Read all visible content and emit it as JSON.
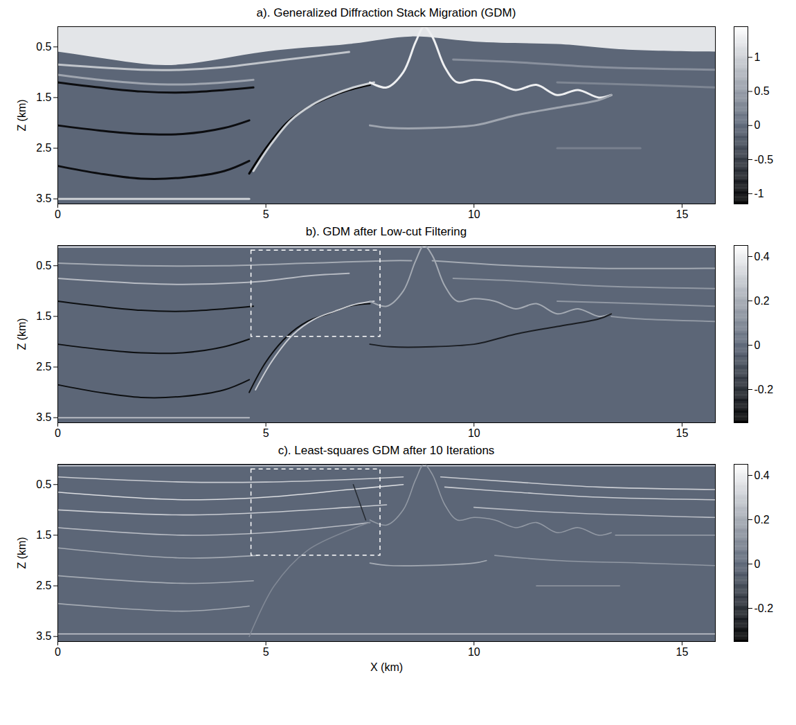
{
  "chart_data": [
    {
      "type": "image",
      "title": "a). Generalized Diffraction Stack Migration (GDM)",
      "ylabel": "Z (km)",
      "xlim": [
        0,
        15.8
      ],
      "ylim": [
        0.1,
        3.6
      ],
      "xticks": [
        0,
        5,
        10,
        15
      ],
      "yticks": [
        0.5,
        1.5,
        2.5,
        3.5
      ],
      "colorbar": {
        "range": [
          -1.15,
          1.45
        ],
        "stops": [
          -1.15,
          0,
          1.45
        ],
        "ticks": [
          -1,
          -0.5,
          0,
          0.5,
          1
        ],
        "colors": [
          "#000000",
          "#5c6677",
          "#ffffff"
        ]
      },
      "bands": [
        {
          "amplitude": 1.2,
          "x": [
            0,
            1.5,
            3,
            5,
            7,
            8.5,
            10,
            12,
            13.5,
            15.8
          ],
          "z_top": [
            0.1,
            0.1,
            0.1,
            0.1,
            0.1,
            0.1,
            0.1,
            0.1,
            0.1,
            0.1
          ],
          "z_bottom": [
            0.6,
            0.78,
            0.85,
            0.6,
            0.45,
            0.3,
            0.4,
            0.45,
            0.55,
            0.6
          ]
        }
      ],
      "horizons": [
        {
          "amplitude": 0.9,
          "x": [
            0,
            2,
            3,
            4,
            5,
            6,
            7
          ],
          "z": [
            0.85,
            0.95,
            0.95,
            0.9,
            0.8,
            0.7,
            0.6
          ]
        },
        {
          "amplitude": -1.0,
          "x": [
            0,
            1,
            2,
            3,
            4,
            4.7
          ],
          "z": [
            1.2,
            1.3,
            1.38,
            1.4,
            1.35,
            1.3
          ]
        },
        {
          "amplitude": 0.6,
          "x": [
            0,
            1,
            2,
            3,
            4,
            4.7
          ],
          "z": [
            1.05,
            1.15,
            1.22,
            1.24,
            1.2,
            1.15
          ]
        },
        {
          "amplitude": -1.0,
          "x": [
            0,
            1,
            2,
            3,
            4,
            4.6
          ],
          "z": [
            2.05,
            2.15,
            2.22,
            2.22,
            2.1,
            1.95
          ]
        },
        {
          "amplitude": -1.0,
          "x": [
            0,
            1,
            2,
            3,
            4,
            4.6
          ],
          "z": [
            2.85,
            3.0,
            3.1,
            3.08,
            2.95,
            2.75
          ]
        },
        {
          "amplitude": 1.0,
          "x": [
            0,
            2,
            4.6
          ],
          "z": [
            3.5,
            3.5,
            3.5
          ]
        },
        {
          "amplitude": -1.1,
          "x": [
            4.6,
            5,
            5.5,
            6,
            6.5,
            7,
            7.5
          ],
          "z": [
            3.0,
            2.5,
            2.0,
            1.7,
            1.5,
            1.35,
            1.25
          ]
        },
        {
          "amplitude": 1.0,
          "x": [
            4.7,
            5.1,
            5.6,
            6.1,
            6.6,
            7.1,
            7.6
          ],
          "z": [
            2.95,
            2.45,
            1.95,
            1.65,
            1.45,
            1.3,
            1.2
          ]
        },
        {
          "amplitude": 1.3,
          "x": [
            7.5,
            7.9,
            8.3,
            8.6,
            8.8,
            9.0,
            9.3,
            9.6,
            10,
            10.5,
            11,
            11.5,
            12,
            12.5,
            13,
            13.3
          ],
          "z": [
            1.2,
            1.3,
            1.0,
            0.4,
            0.1,
            0.3,
            0.9,
            1.2,
            1.15,
            1.2,
            1.35,
            1.25,
            1.45,
            1.35,
            1.5,
            1.45
          ]
        },
        {
          "amplitude": 0.6,
          "x": [
            7.5,
            8,
            9,
            10,
            10.3,
            11,
            12,
            13,
            13.3
          ],
          "z": [
            2.05,
            2.1,
            2.1,
            2.05,
            2.0,
            1.85,
            1.7,
            1.55,
            1.45
          ]
        },
        {
          "amplitude": 0.4,
          "x": [
            9.5,
            11,
            13,
            15.8
          ],
          "z": [
            0.75,
            0.8,
            0.9,
            0.95
          ]
        },
        {
          "amplitude": 0.3,
          "x": [
            12,
            14,
            15.8
          ],
          "z": [
            1.2,
            1.25,
            1.3
          ]
        },
        {
          "amplitude": 0.25,
          "x": [
            12,
            13,
            14
          ],
          "z": [
            2.5,
            2.5,
            2.5
          ]
        }
      ]
    },
    {
      "type": "image",
      "title": "b). GDM after Low-cut Filtering",
      "ylabel": "Z (km)",
      "xlim": [
        0,
        15.8
      ],
      "ylim": [
        0.1,
        3.6
      ],
      "xticks": [
        0,
        5,
        10,
        15
      ],
      "yticks": [
        0.5,
        1.5,
        2.5,
        3.5
      ],
      "colorbar": {
        "range": [
          -0.35,
          0.45
        ],
        "stops": [
          -0.35,
          0,
          0.45
        ],
        "ticks": [
          -0.2,
          0,
          0.2,
          0.4
        ],
        "colors": [
          "#000000",
          "#5c6677",
          "#ffffff"
        ]
      },
      "box": {
        "x": [
          4.65,
          7.75
        ],
        "z": [
          0.2,
          1.9
        ],
        "line_style": "dashed"
      },
      "horizons": [
        {
          "amplitude": 0.35,
          "x": [
            0,
            5,
            10,
            15.8
          ],
          "z": [
            0.13,
            0.13,
            0.13,
            0.13
          ]
        },
        {
          "amplitude": 0.2,
          "x": [
            0,
            2,
            4,
            6,
            8,
            8.5
          ],
          "z": [
            0.45,
            0.5,
            0.5,
            0.45,
            0.4,
            0.4
          ]
        },
        {
          "amplitude": 0.2,
          "x": [
            9,
            11,
            13,
            15.8
          ],
          "z": [
            0.4,
            0.5,
            0.55,
            0.55
          ]
        },
        {
          "amplitude": 0.25,
          "x": [
            0,
            2,
            3,
            4,
            5,
            6,
            7
          ],
          "z": [
            0.75,
            0.85,
            0.87,
            0.85,
            0.8,
            0.7,
            0.65
          ]
        },
        {
          "amplitude": -0.3,
          "x": [
            0,
            1,
            2,
            3,
            4,
            4.7
          ],
          "z": [
            1.2,
            1.3,
            1.38,
            1.4,
            1.35,
            1.3
          ]
        },
        {
          "amplitude": -0.3,
          "x": [
            4.6,
            5,
            5.5,
            6,
            6.5,
            7,
            7.5
          ],
          "z": [
            3.0,
            2.4,
            1.9,
            1.6,
            1.45,
            1.3,
            1.25
          ]
        },
        {
          "amplitude": 0.3,
          "x": [
            4.75,
            5.15,
            5.65,
            6.15,
            6.65,
            7.15,
            7.6
          ],
          "z": [
            2.95,
            2.38,
            1.86,
            1.56,
            1.4,
            1.26,
            1.2
          ]
        },
        {
          "amplitude": -0.3,
          "x": [
            0,
            1,
            2,
            3,
            4,
            4.6
          ],
          "z": [
            2.05,
            2.15,
            2.22,
            2.22,
            2.1,
            1.95
          ]
        },
        {
          "amplitude": -0.3,
          "x": [
            0,
            1,
            2,
            3,
            4,
            4.6
          ],
          "z": [
            2.85,
            3.0,
            3.1,
            3.08,
            2.95,
            2.75
          ]
        },
        {
          "amplitude": 0.25,
          "x": [
            0,
            2,
            4.6
          ],
          "z": [
            3.5,
            3.5,
            3.5
          ]
        },
        {
          "amplitude": 0.2,
          "x": [
            7.5,
            7.9,
            8.3,
            8.6,
            8.8,
            9.0,
            9.3,
            9.6,
            10,
            10.5,
            11,
            11.5,
            12,
            12.5,
            13,
            13.3
          ],
          "z": [
            1.2,
            1.3,
            1.0,
            0.4,
            0.1,
            0.3,
            0.9,
            1.2,
            1.15,
            1.2,
            1.35,
            1.25,
            1.45,
            1.35,
            1.5,
            1.45
          ]
        },
        {
          "amplitude": -0.25,
          "x": [
            7.5,
            8,
            9,
            10,
            10.3,
            11,
            12,
            13,
            13.3
          ],
          "z": [
            2.05,
            2.1,
            2.1,
            2.05,
            2.0,
            1.85,
            1.7,
            1.55,
            1.45
          ]
        },
        {
          "amplitude": 0.15,
          "x": [
            9.5,
            11,
            13,
            15.8
          ],
          "z": [
            0.75,
            0.8,
            0.9,
            0.95
          ]
        },
        {
          "amplitude": 0.15,
          "x": [
            12,
            14,
            15.8
          ],
          "z": [
            1.2,
            1.25,
            1.3
          ]
        },
        {
          "amplitude": 0.15,
          "x": [
            13.3,
            14,
            15.8
          ],
          "z": [
            1.5,
            1.55,
            1.6
          ]
        }
      ]
    },
    {
      "type": "image",
      "title": "c). Least-squares GDM after 10 Iterations",
      "xlabel": "X (km)",
      "ylabel": "Z (km)",
      "xlim": [
        0,
        15.8
      ],
      "ylim": [
        0.1,
        3.6
      ],
      "xticks": [
        0,
        5,
        10,
        15
      ],
      "yticks": [
        0.5,
        1.5,
        2.5,
        3.5
      ],
      "colorbar": {
        "range": [
          -0.35,
          0.45
        ],
        "stops": [
          -0.35,
          0,
          0.45
        ],
        "ticks": [
          -0.2,
          0,
          0.2,
          0.4
        ],
        "colors": [
          "#000000",
          "#5c6677",
          "#ffffff"
        ]
      },
      "box": {
        "x": [
          4.65,
          7.75
        ],
        "z": [
          0.2,
          1.9
        ],
        "line_style": "dashed"
      },
      "horizons": [
        {
          "amplitude": 0.3,
          "x": [
            0,
            5,
            10,
            15.8
          ],
          "z": [
            0.13,
            0.13,
            0.13,
            0.13
          ]
        },
        {
          "amplitude": 0.3,
          "x": [
            0,
            3,
            5,
            7,
            8.3
          ],
          "z": [
            0.35,
            0.45,
            0.45,
            0.4,
            0.35
          ]
        },
        {
          "amplitude": 0.3,
          "x": [
            9.2,
            11,
            13,
            15.8
          ],
          "z": [
            0.35,
            0.45,
            0.55,
            0.6
          ]
        },
        {
          "amplitude": 0.35,
          "x": [
            0,
            3,
            5,
            7,
            8.3
          ],
          "z": [
            0.65,
            0.8,
            0.75,
            0.6,
            0.5
          ]
        },
        {
          "amplitude": 0.3,
          "x": [
            9.3,
            11,
            13,
            15.8
          ],
          "z": [
            0.55,
            0.65,
            0.75,
            0.8
          ]
        },
        {
          "amplitude": 0.3,
          "x": [
            0,
            3,
            5,
            7,
            7.9
          ],
          "z": [
            1.0,
            1.1,
            1.05,
            0.95,
            0.9
          ]
        },
        {
          "amplitude": 0.25,
          "x": [
            10,
            12,
            15.8
          ],
          "z": [
            0.95,
            1.05,
            1.15
          ]
        },
        {
          "amplitude": 0.25,
          "x": [
            0,
            3,
            5,
            7,
            7.5
          ],
          "z": [
            1.35,
            1.5,
            1.45,
            1.3,
            1.25
          ]
        },
        {
          "amplitude": 0.2,
          "x": [
            0,
            3,
            4.8
          ],
          "z": [
            1.75,
            1.95,
            1.9
          ]
        },
        {
          "amplitude": 0.2,
          "x": [
            0,
            3,
            4.7
          ],
          "z": [
            2.3,
            2.45,
            2.4
          ]
        },
        {
          "amplitude": 0.2,
          "x": [
            0,
            3,
            4.6
          ],
          "z": [
            2.85,
            3.0,
            2.9
          ]
        },
        {
          "amplitude": 0.3,
          "x": [
            0,
            8,
            15.8
          ],
          "z": [
            3.45,
            3.45,
            3.45
          ]
        },
        {
          "amplitude": 0.1,
          "x": [
            4.6,
            5.2,
            6,
            7,
            7.5
          ],
          "z": [
            3.5,
            2.5,
            1.8,
            1.4,
            1.25
          ]
        },
        {
          "amplitude": -0.2,
          "x": [
            7.1,
            7.4
          ],
          "z": [
            0.5,
            1.2
          ]
        },
        {
          "amplitude": 0.15,
          "x": [
            7.5,
            7.9,
            8.3,
            8.6,
            8.8,
            9.0,
            9.3,
            9.6,
            10,
            10.5,
            11,
            11.5,
            12,
            12.5,
            13,
            13.3
          ],
          "z": [
            1.2,
            1.3,
            1.0,
            0.4,
            0.1,
            0.3,
            0.9,
            1.2,
            1.15,
            1.2,
            1.35,
            1.25,
            1.45,
            1.35,
            1.5,
            1.45
          ]
        },
        {
          "amplitude": 0.2,
          "x": [
            7.5,
            8,
            10,
            10.3
          ],
          "z": [
            2.05,
            2.1,
            2.05,
            2.0
          ]
        },
        {
          "amplitude": 0.15,
          "x": [
            10.5,
            12,
            14,
            15.8
          ],
          "z": [
            1.9,
            2.0,
            2.05,
            2.1
          ]
        },
        {
          "amplitude": 0.15,
          "x": [
            13.4,
            15.8
          ],
          "z": [
            1.5,
            1.5
          ]
        },
        {
          "amplitude": 0.15,
          "x": [
            11.5,
            12.5,
            13.5
          ],
          "z": [
            2.5,
            2.5,
            2.5
          ]
        }
      ]
    }
  ]
}
